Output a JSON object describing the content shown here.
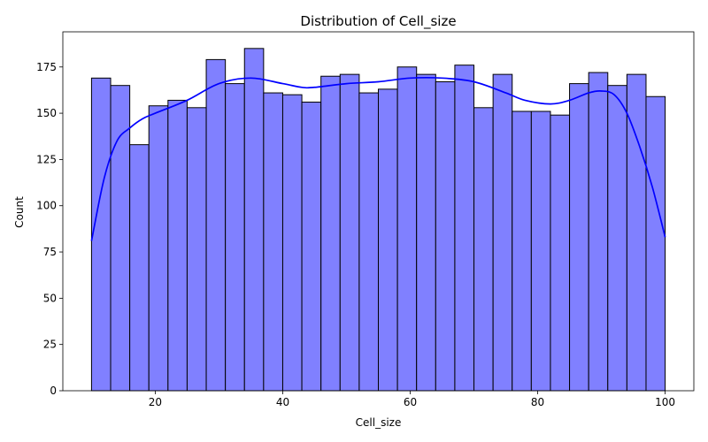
{
  "chart_data": {
    "type": "bar",
    "subtype": "histogram-with-kde",
    "title": "Distribution of Cell_size",
    "xlabel": "Cell_size",
    "ylabel": "Count",
    "xlim": [
      5.5,
      104.5
    ],
    "ylim": [
      0,
      194
    ],
    "xticks": [
      20,
      40,
      60,
      80,
      100
    ],
    "yticks": [
      0,
      25,
      50,
      75,
      100,
      125,
      150,
      175
    ],
    "grid": false,
    "bar_color": "#8080ff",
    "bar_edge_color": "#000000",
    "kde_color": "#0000ff",
    "bins": [
      {
        "x0": 10.0,
        "x1": 13.0,
        "count": 169
      },
      {
        "x0": 13.0,
        "x1": 16.0,
        "count": 165
      },
      {
        "x0": 16.0,
        "x1": 19.0,
        "count": 133
      },
      {
        "x0": 19.0,
        "x1": 22.0,
        "count": 154
      },
      {
        "x0": 22.0,
        "x1": 25.0,
        "count": 157
      },
      {
        "x0": 25.0,
        "x1": 28.0,
        "count": 153
      },
      {
        "x0": 28.0,
        "x1": 31.0,
        "count": 179
      },
      {
        "x0": 31.0,
        "x1": 34.0,
        "count": 166
      },
      {
        "x0": 34.0,
        "x1": 37.0,
        "count": 185
      },
      {
        "x0": 37.0,
        "x1": 40.0,
        "count": 161
      },
      {
        "x0": 40.0,
        "x1": 43.0,
        "count": 160
      },
      {
        "x0": 43.0,
        "x1": 46.0,
        "count": 156
      },
      {
        "x0": 46.0,
        "x1": 49.0,
        "count": 170
      },
      {
        "x0": 49.0,
        "x1": 52.0,
        "count": 171
      },
      {
        "x0": 52.0,
        "x1": 55.0,
        "count": 161
      },
      {
        "x0": 55.0,
        "x1": 58.0,
        "count": 163
      },
      {
        "x0": 58.0,
        "x1": 61.0,
        "count": 175
      },
      {
        "x0": 61.0,
        "x1": 64.0,
        "count": 171
      },
      {
        "x0": 64.0,
        "x1": 67.0,
        "count": 167
      },
      {
        "x0": 67.0,
        "x1": 70.0,
        "count": 176
      },
      {
        "x0": 70.0,
        "x1": 73.0,
        "count": 153
      },
      {
        "x0": 73.0,
        "x1": 76.0,
        "count": 171
      },
      {
        "x0": 76.0,
        "x1": 79.0,
        "count": 151
      },
      {
        "x0": 79.0,
        "x1": 82.0,
        "count": 151
      },
      {
        "x0": 82.0,
        "x1": 85.0,
        "count": 149
      },
      {
        "x0": 85.0,
        "x1": 88.0,
        "count": 166
      },
      {
        "x0": 88.0,
        "x1": 91.0,
        "count": 172
      },
      {
        "x0": 91.0,
        "x1": 94.0,
        "count": 165
      },
      {
        "x0": 94.0,
        "x1": 97.0,
        "count": 171
      },
      {
        "x0": 97.0,
        "x1": 100.0,
        "count": 159
      }
    ],
    "kde": {
      "x": [
        10,
        12,
        14,
        16,
        18,
        20,
        25,
        30,
        35,
        40,
        43,
        45,
        50,
        55,
        60,
        65,
        70,
        75,
        78,
        82,
        85,
        88,
        90,
        92,
        94,
        96,
        98,
        100
      ],
      "y": [
        81,
        115,
        135,
        142,
        147,
        150,
        157,
        166,
        169,
        166,
        164,
        164,
        166,
        167,
        169,
        169,
        167,
        161,
        157,
        155,
        157,
        161,
        162,
        160,
        150,
        132,
        110,
        83
      ]
    }
  }
}
